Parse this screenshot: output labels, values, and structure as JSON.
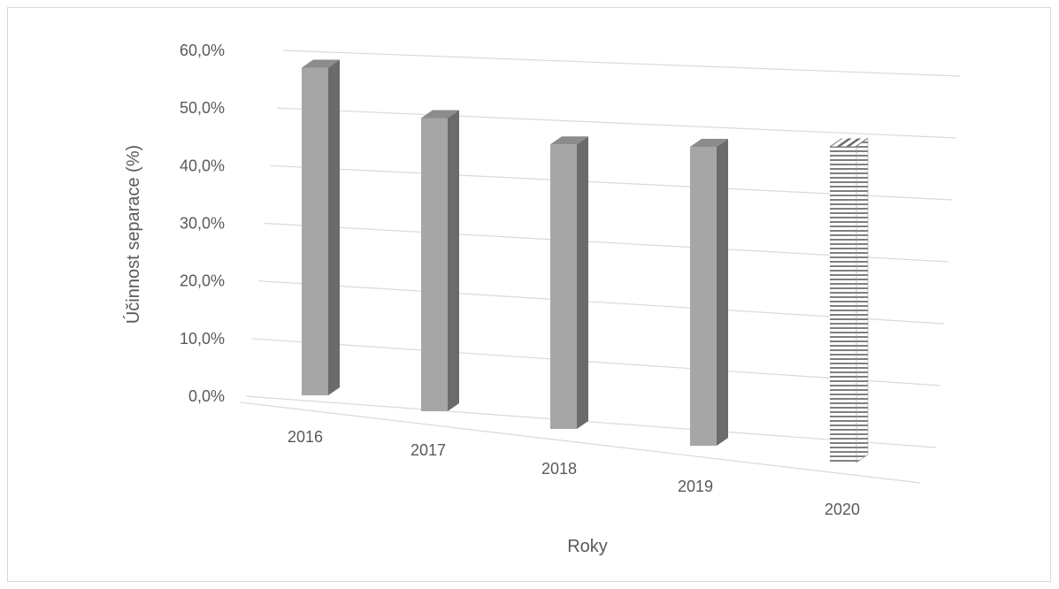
{
  "chart_data": {
    "type": "bar",
    "categories": [
      "2016",
      "2017",
      "2018",
      "2019",
      "2020"
    ],
    "values": [
      57.0,
      51.0,
      49.5,
      52.0,
      55.0
    ],
    "xlabel": "Roky",
    "ylabel": "Účinnost separace (%)",
    "ylim": [
      0,
      60
    ],
    "yticks": [
      "0,0%",
      "10,0%",
      "20,0%",
      "30,0%",
      "40,0%",
      "50,0%",
      "60,0%"
    ],
    "grid": true,
    "legend": "none",
    "colors": {
      "front": "#a6a6a6",
      "side": "#6b6b6b",
      "top": "#8c8c8c",
      "gridline": "#d9d9d9",
      "hatch": "#7f7f7f"
    },
    "patterned_category": "2020"
  }
}
